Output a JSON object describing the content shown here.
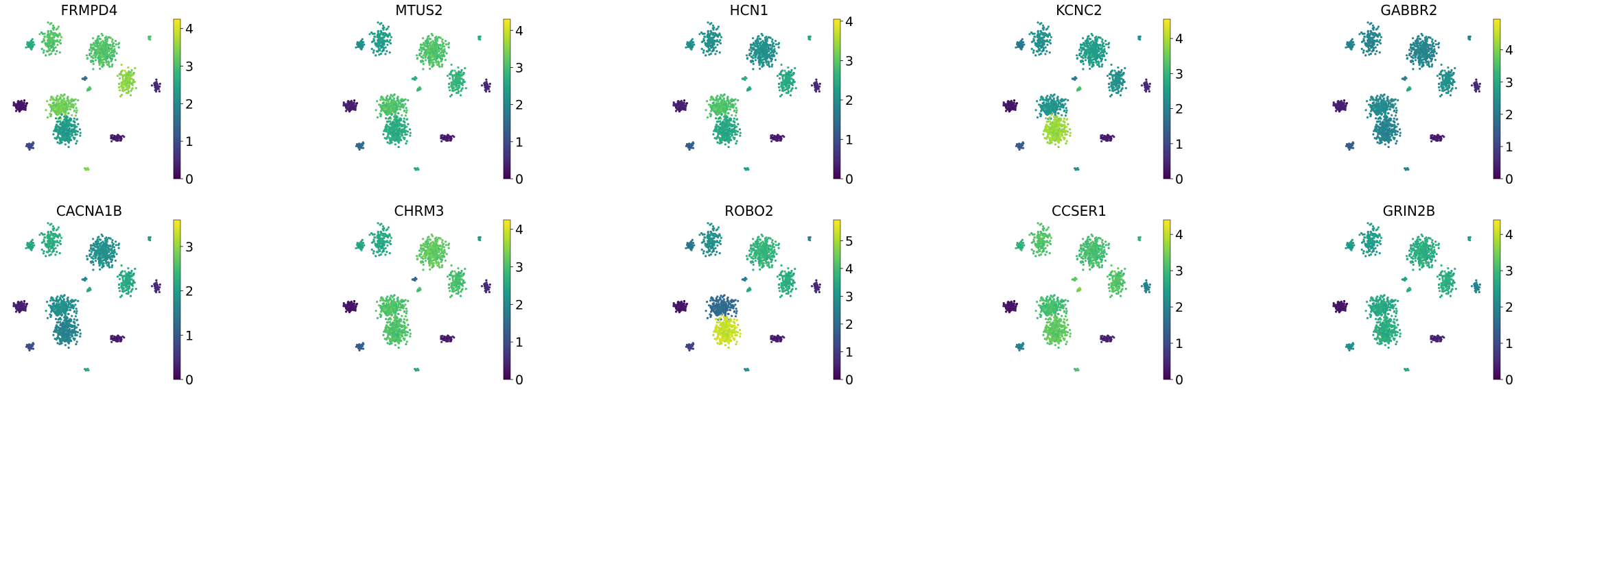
{
  "figure": {
    "colormap": "viridis",
    "colormap_stops": [
      "#440154",
      "#482878",
      "#3e4989",
      "#31688e",
      "#26828e",
      "#1f9e89",
      "#35b779",
      "#6ece58",
      "#b5de2b",
      "#fde725"
    ]
  },
  "chart_data": [
    {
      "type": "scatter",
      "title": "FRMPD4",
      "colorbar": {
        "min": 0,
        "max": 4.25,
        "ticks": [
          0,
          1,
          2,
          3,
          4
        ]
      },
      "cluster_levels": {
        "A": 0.72,
        "B": 0.62,
        "C": 0.72,
        "D": 0.82,
        "E": 0.78,
        "F": 0.55,
        "G": 0.35,
        "H": 0.72,
        "I": 0.05,
        "J": 0.22,
        "K": 0.08,
        "L": 0.72,
        "M": 0.12,
        "N": 0.8
      }
    },
    {
      "type": "scatter",
      "title": "MTUS2",
      "colorbar": {
        "min": 0,
        "max": 4.3,
        "ticks": [
          0,
          1,
          2,
          3,
          4
        ]
      },
      "cluster_levels": {
        "A": 0.55,
        "B": 0.5,
        "C": 0.72,
        "D": 0.65,
        "E": 0.72,
        "F": 0.62,
        "G": 0.6,
        "H": 0.68,
        "I": 0.08,
        "J": 0.35,
        "K": 0.08,
        "L": 0.62,
        "M": 0.12,
        "N": 0.6
      }
    },
    {
      "type": "scatter",
      "title": "HCN1",
      "colorbar": {
        "min": 0,
        "max": 4.05,
        "ticks": [
          0,
          1,
          2,
          3,
          4
        ]
      },
      "cluster_levels": {
        "A": 0.5,
        "B": 0.5,
        "C": 0.5,
        "D": 0.6,
        "E": 0.72,
        "F": 0.6,
        "G": 0.6,
        "H": 0.6,
        "I": 0.08,
        "J": 0.3,
        "K": 0.08,
        "L": 0.6,
        "M": 0.12,
        "N": 0.55
      }
    },
    {
      "type": "scatter",
      "title": "KCNC2",
      "colorbar": {
        "min": 0,
        "max": 4.55,
        "ticks": [
          0,
          1,
          2,
          3,
          4
        ]
      },
      "cluster_levels": {
        "A": 0.5,
        "B": 0.4,
        "C": 0.55,
        "D": 0.5,
        "E": 0.52,
        "F": 0.85,
        "G": 0.4,
        "H": 0.7,
        "I": 0.05,
        "J": 0.3,
        "K": 0.08,
        "L": 0.5,
        "M": 0.12,
        "N": 0.5
      }
    },
    {
      "type": "scatter",
      "title": "GABBR2",
      "colorbar": {
        "min": 0,
        "max": 4.95,
        "ticks": [
          0,
          1,
          2,
          3,
          4
        ]
      },
      "cluster_levels": {
        "A": 0.45,
        "B": 0.45,
        "C": 0.45,
        "D": 0.5,
        "E": 0.48,
        "F": 0.45,
        "G": 0.42,
        "H": 0.6,
        "I": 0.08,
        "J": 0.3,
        "K": 0.08,
        "L": 0.45,
        "M": 0.12,
        "N": 0.45
      }
    },
    {
      "type": "scatter",
      "title": "CACNA1B",
      "colorbar": {
        "min": 0,
        "max": 3.6,
        "ticks": [
          0,
          1,
          2,
          3
        ]
      },
      "cluster_levels": {
        "A": 0.62,
        "B": 0.6,
        "C": 0.5,
        "D": 0.6,
        "E": 0.5,
        "F": 0.45,
        "G": 0.45,
        "H": 0.6,
        "I": 0.08,
        "J": 0.25,
        "K": 0.08,
        "L": 0.55,
        "M": 0.12,
        "N": 0.6
      }
    },
    {
      "type": "scatter",
      "title": "CHRM3",
      "colorbar": {
        "min": 0,
        "max": 4.25,
        "ticks": [
          0,
          1,
          2,
          3,
          4
        ]
      },
      "cluster_levels": {
        "A": 0.6,
        "B": 0.6,
        "C": 0.75,
        "D": 0.7,
        "E": 0.72,
        "F": 0.72,
        "G": 0.3,
        "H": 0.7,
        "I": 0.05,
        "J": 0.3,
        "K": 0.08,
        "L": 0.55,
        "M": 0.12,
        "N": 0.6
      }
    },
    {
      "type": "scatter",
      "title": "ROBO2",
      "colorbar": {
        "min": 0,
        "max": 5.75,
        "ticks": [
          0,
          1,
          2,
          3,
          4,
          5
        ]
      },
      "cluster_levels": {
        "A": 0.5,
        "B": 0.4,
        "C": 0.65,
        "D": 0.62,
        "E": 0.35,
        "F": 0.92,
        "G": 0.4,
        "H": 0.6,
        "I": 0.05,
        "J": 0.2,
        "K": 0.08,
        "L": 0.45,
        "M": 0.12,
        "N": 0.5
      }
    },
    {
      "type": "scatter",
      "title": "CCSER1",
      "colorbar": {
        "min": 0,
        "max": 4.4,
        "ticks": [
          0,
          1,
          2,
          3,
          4
        ]
      },
      "cluster_levels": {
        "A": 0.72,
        "B": 0.65,
        "C": 0.7,
        "D": 0.72,
        "E": 0.7,
        "F": 0.75,
        "G": 0.72,
        "H": 0.8,
        "I": 0.05,
        "J": 0.45,
        "K": 0.1,
        "L": 0.65,
        "M": 0.45,
        "N": 0.7
      }
    },
    {
      "type": "scatter",
      "title": "GRIN2B",
      "colorbar": {
        "min": 0,
        "max": 4.4,
        "ticks": [
          0,
          1,
          2,
          3,
          4
        ]
      },
      "cluster_levels": {
        "A": 0.55,
        "B": 0.55,
        "C": 0.62,
        "D": 0.62,
        "E": 0.6,
        "F": 0.62,
        "G": 0.55,
        "H": 0.62,
        "I": 0.05,
        "J": 0.5,
        "K": 0.1,
        "L": 0.55,
        "M": 0.45,
        "N": 0.6
      }
    }
  ]
}
